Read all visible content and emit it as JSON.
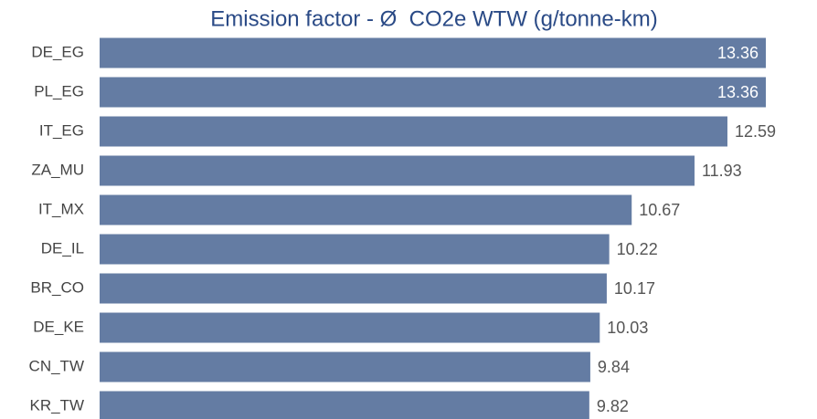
{
  "chart_data": {
    "type": "bar",
    "orientation": "horizontal",
    "title": "Emission factor - Ø  CO2e WTW (g/tonne-km)",
    "categories": [
      "DE_EG",
      "PL_EG",
      "IT_EG",
      "ZA_MU",
      "IT_MX",
      "DE_IL",
      "BR_CO",
      "DE_KE",
      "CN_TW",
      "KR_TW"
    ],
    "values": [
      13.36,
      13.36,
      12.59,
      11.93,
      10.67,
      10.22,
      10.17,
      10.03,
      9.84,
      9.82
    ],
    "color": "#647ca3"
  }
}
